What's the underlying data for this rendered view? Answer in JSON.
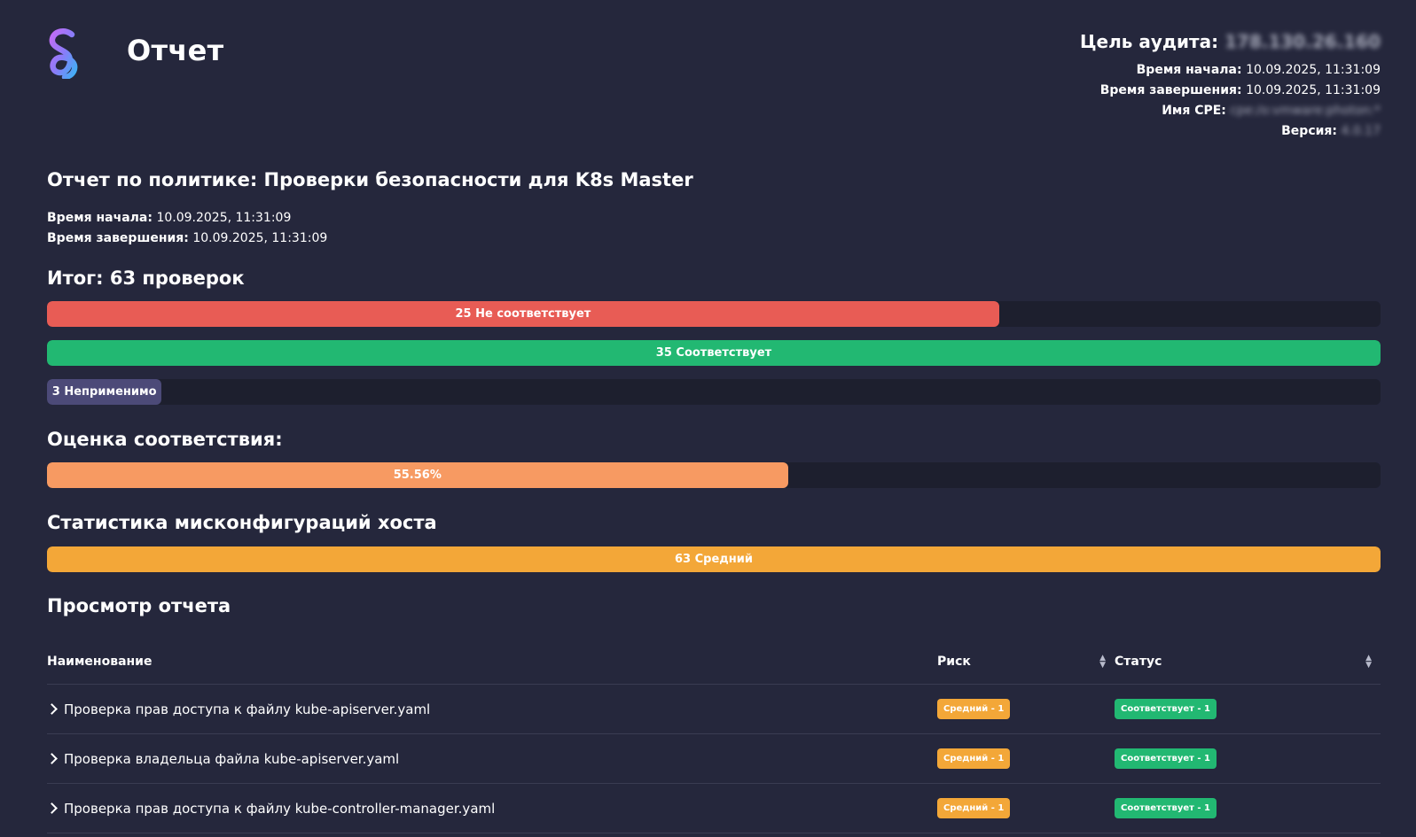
{
  "header": {
    "title": "Отчет",
    "audit_target_label": "Цель аудита:",
    "audit_target_value": "178.130.26.160",
    "start_label": "Время начала:",
    "start_value": "10.09.2025, 11:31:09",
    "end_label": "Время завершения:",
    "end_value": "10.09.2025, 11:31:09",
    "cpe_label": "Имя CPE:",
    "cpe_value": "cpe:/o:vmware:photon:*",
    "version_label": "Версия:",
    "version_value": "4.0.17"
  },
  "policy": {
    "title": "Отчет по политике: Проверки безопасности для K8s Master",
    "start_label": "Время начала:",
    "start_value": "10.09.2025, 11:31:09",
    "end_label": "Время завершения:",
    "end_value": "10.09.2025, 11:31:09"
  },
  "summary": {
    "heading": "Итог: 63 проверок",
    "total": 63,
    "bars": [
      {
        "label": "25 Не соответствует",
        "fraction": 0.714,
        "color": "#e85c55"
      },
      {
        "label": "35 Соответствует",
        "fraction": 1.0,
        "color": "#22b872"
      },
      {
        "label": "3 Неприменимо",
        "fraction": 0.086,
        "color": "#4c4a78"
      }
    ]
  },
  "compliance": {
    "heading": "Оценка соответствия:",
    "label": "55.56%",
    "fraction": 0.5556,
    "color": "#f79a62"
  },
  "misconfig": {
    "heading": "Статистика мисконфигураций хоста",
    "label": "63 Средний",
    "fraction": 1.0,
    "color": "#f3a738"
  },
  "report_view": {
    "heading": "Просмотр отчета",
    "columns": {
      "name": "Наименование",
      "risk": "Риск",
      "status": "Статус"
    },
    "rows": [
      {
        "name": "Проверка прав доступа к файлу kube-apiserver.yaml",
        "risk": "Средний - 1",
        "status": "Соответствует - 1"
      },
      {
        "name": "Проверка владельца файла kube-apiserver.yaml",
        "risk": "Средний - 1",
        "status": "Соответствует - 1"
      },
      {
        "name": "Проверка прав доступа к файлу kube-controller-manager.yaml",
        "risk": "Средний - 1",
        "status": "Соответствует - 1"
      }
    ],
    "risk_color": "#f3a738",
    "status_color": "#22b872"
  }
}
